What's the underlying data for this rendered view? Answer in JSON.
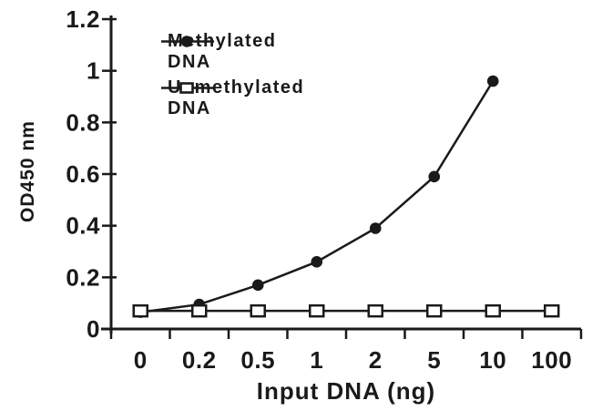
{
  "colors": {
    "background": "#ffffff",
    "foreground": "#1a1a1a"
  },
  "chart_data": {
    "type": "line",
    "title": "",
    "xlabel": "Input DNA (ng)",
    "ylabel": "OD450 nm",
    "categories": [
      "0",
      "0.2",
      "0.5",
      "1",
      "2",
      "5",
      "10",
      "100"
    ],
    "y_ticks": [
      "0",
      "0.2",
      "0.4",
      "0.6",
      "0.8",
      "1",
      "1.2"
    ],
    "ylim": [
      0,
      1.2
    ],
    "grid": false,
    "legend_position": "top-left-inside",
    "series": [
      {
        "name": "Methylated DNA",
        "marker": "filled-circle",
        "color": "#1a1a1a",
        "values": [
          0.065,
          0.095,
          0.17,
          0.26,
          0.39,
          0.59,
          0.96,
          null
        ]
      },
      {
        "name": "Unmethylated DNA",
        "marker": "open-square",
        "color": "#1a1a1a",
        "values": [
          0.07,
          0.07,
          0.07,
          0.07,
          0.07,
          0.07,
          0.07,
          0.07
        ]
      }
    ]
  }
}
